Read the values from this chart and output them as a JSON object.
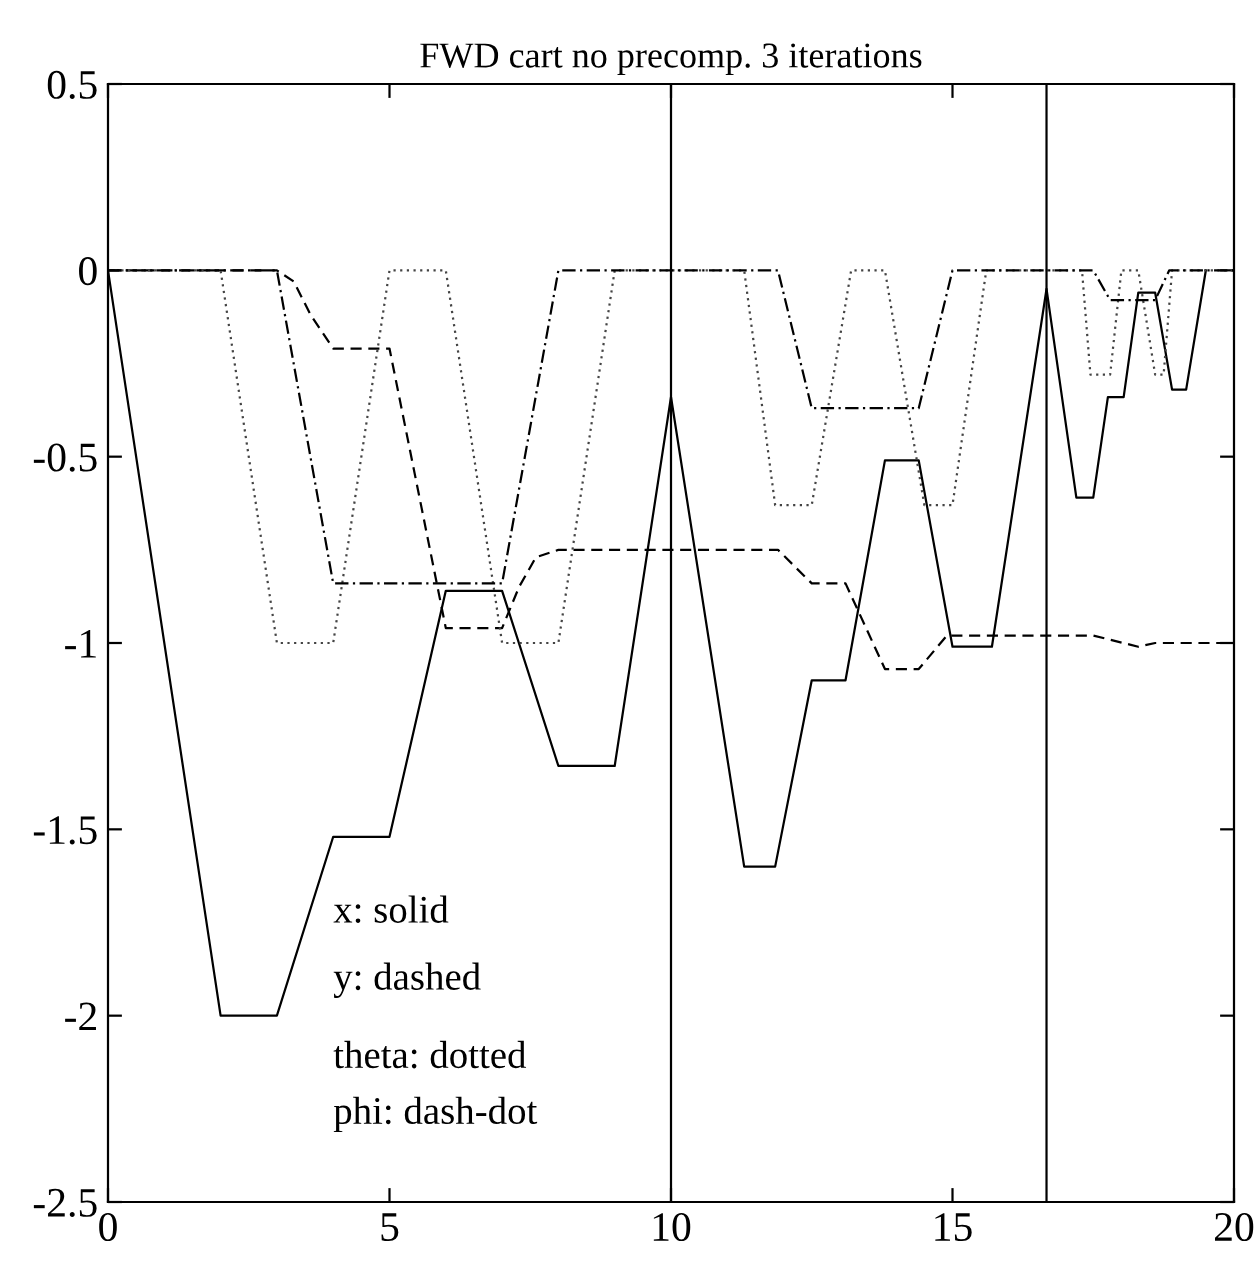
{
  "chart_data": {
    "type": "line",
    "title": "FWD cart no precomp. 3 iterations",
    "xlim": [
      0,
      20
    ],
    "ylim": [
      -2.5,
      0.5
    ],
    "xticks": [
      0,
      5,
      10,
      15,
      20
    ],
    "yticks": [
      0.5,
      0,
      -0.5,
      -1,
      -1.5,
      -2,
      -2.5
    ],
    "grid": false,
    "legend": false,
    "marker": "none",
    "series": [
      {
        "color": "#000000",
        "line_style": "solid",
        "x": [
          0,
          2,
          3,
          4,
          5,
          6,
          7,
          8,
          9,
          10,
          11.3,
          11.85,
          12.5,
          13.1,
          13.8,
          14.4,
          15.0,
          15.7,
          16.67,
          17.2,
          17.5,
          17.76,
          18.04,
          18.3,
          18.6,
          18.9,
          19.15,
          19.5
        ],
        "values": [
          0,
          -2,
          -2,
          -1.52,
          -1.52,
          -0.86,
          -0.86,
          -1.33,
          -1.33,
          -0.34,
          -1.6,
          -1.6,
          -1.1,
          -1.1,
          -0.51,
          -0.51,
          -1.01,
          -1.01,
          -0.05,
          -0.61,
          -0.61,
          -0.34,
          -0.34,
          -0.06,
          -0.06,
          -0.32,
          -0.32,
          0
        ]
      },
      {
        "color": "#000000",
        "line_style": "dashed",
        "x": [
          0,
          3,
          3.3,
          3.6,
          4,
          5,
          6,
          7,
          7.3,
          7.6,
          8,
          11.9,
          12.5,
          13.1,
          13.8,
          14.4,
          14.9,
          17.5,
          18.3,
          18.6,
          20
        ],
        "values": [
          0,
          0,
          -0.03,
          -0.12,
          -0.21,
          -0.21,
          -0.96,
          -0.96,
          -0.85,
          -0.77,
          -0.75,
          -0.75,
          -0.84,
          -0.84,
          -1.07,
          -1.07,
          -0.98,
          -0.98,
          -1.01,
          -1.0,
          -1.0
        ]
      },
      {
        "color": "#444444",
        "line_style": "dotted",
        "x": [
          0,
          2,
          3,
          4,
          5,
          6,
          7,
          8,
          9,
          11.3,
          11.85,
          12.5,
          13.2,
          13.8,
          14.5,
          15.0,
          15.6,
          17.3,
          17.45,
          17.8,
          18.0,
          18.3,
          18.6,
          18.75,
          18.9,
          20
        ],
        "values": [
          0,
          0,
          -1,
          -1,
          0,
          0,
          -1,
          -1,
          0,
          0,
          -0.63,
          -0.63,
          0,
          0,
          -0.63,
          -0.63,
          0,
          0,
          -0.28,
          -0.28,
          0,
          0,
          -0.28,
          -0.28,
          0,
          0
        ]
      },
      {
        "color": "#000000",
        "line_style": "dashdot",
        "x": [
          0,
          3,
          4,
          7,
          8,
          11.9,
          12.5,
          14.4,
          15.0,
          17.5,
          17.8,
          18.6,
          18.85,
          20
        ],
        "values": [
          0,
          0,
          -0.84,
          -0.84,
          0,
          0,
          -0.37,
          -0.37,
          0,
          0,
          -0.08,
          -0.08,
          0,
          0
        ]
      }
    ],
    "ref_lines": [
      {
        "axis": "x",
        "value": 10,
        "color": "#000000"
      },
      {
        "axis": "x",
        "value": 16.67,
        "color": "#000000"
      }
    ],
    "annotations": [
      "x: solid",
      "y: dashed",
      "theta: dotted",
      "phi: dash-dot"
    ]
  }
}
